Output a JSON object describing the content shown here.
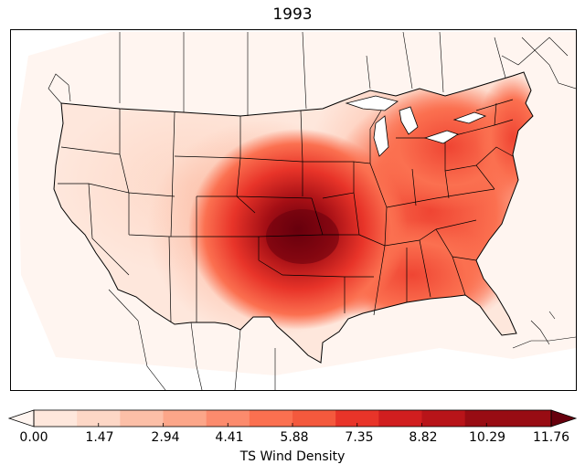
{
  "title": "1993",
  "colorbar": {
    "label": "TS Wind Density",
    "ticks": [
      "0.00",
      "1.47",
      "2.94",
      "4.41",
      "5.88",
      "7.35",
      "8.82",
      "10.29",
      "11.76"
    ],
    "tick_values": [
      0.0,
      1.47,
      2.94,
      4.41,
      5.88,
      7.35,
      8.82,
      10.29,
      11.76
    ],
    "extend": "both",
    "colormap": "Reds",
    "colors": [
      "#fff5f0",
      "#fee7dc",
      "#fdd7c6",
      "#fcbfa7",
      "#fca689",
      "#fc8b6d",
      "#fb7050",
      "#f4593d",
      "#e83429",
      "#d11e1f",
      "#b81419",
      "#980c13",
      "#67000d"
    ]
  },
  "map": {
    "region": "Contiguous United States",
    "projection": "lambert-conformal",
    "peak_region": "Kansas / Oklahoma border",
    "peak_value": 11.76
  }
}
